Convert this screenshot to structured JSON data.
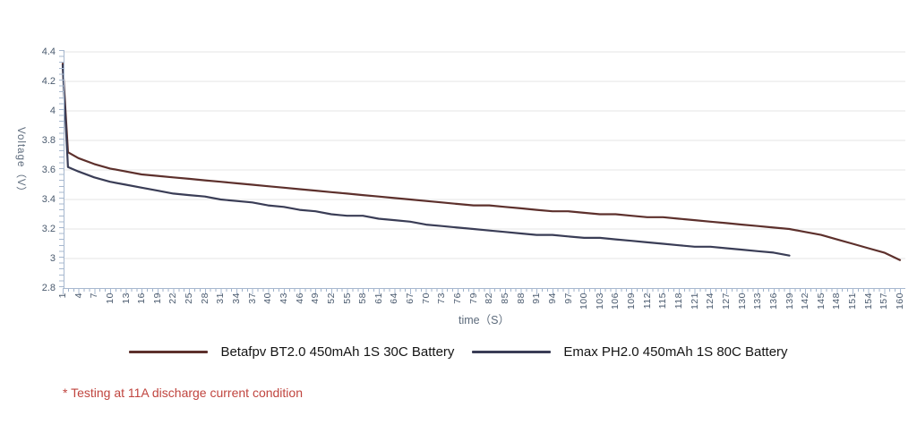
{
  "chart_data": {
    "type": "line",
    "title": "",
    "xlabel": "time（S）",
    "ylabel": "Voltage（V）",
    "xlim": [
      1,
      160
    ],
    "ylim": [
      2.8,
      4.4
    ],
    "grid": true,
    "legend_position": "bottom-center",
    "x_ticks": [
      1,
      4,
      7,
      10,
      13,
      16,
      19,
      22,
      25,
      28,
      31,
      34,
      37,
      40,
      43,
      46,
      49,
      52,
      55,
      58,
      61,
      64,
      67,
      70,
      73,
      76,
      79,
      82,
      85,
      88,
      91,
      94,
      97,
      100,
      103,
      106,
      109,
      112,
      115,
      118,
      121,
      124,
      127,
      130,
      133,
      136,
      139,
      142,
      145,
      148,
      151,
      154,
      157,
      160
    ],
    "y_ticks": [
      4.4,
      4.2,
      4,
      3.8,
      3.6,
      3.4,
      3.2,
      3,
      2.8
    ],
    "y_tick_labels": [
      "4.4",
      "4.2",
      "4",
      "3.8",
      "3.6",
      "3.4",
      "3.2",
      "3",
      "2.8"
    ],
    "axis_color": "#a7b8cf",
    "grid_color": "#e4e4e4",
    "series": [
      {
        "name": "Betafpv BT2.0 450mAh 1S 30C Battery",
        "color": "#5d302c",
        "points": [
          [
            1,
            4.32
          ],
          [
            2,
            3.72
          ],
          [
            4,
            3.68
          ],
          [
            7,
            3.64
          ],
          [
            10,
            3.61
          ],
          [
            13,
            3.59
          ],
          [
            16,
            3.57
          ],
          [
            19,
            3.56
          ],
          [
            22,
            3.55
          ],
          [
            25,
            3.54
          ],
          [
            28,
            3.53
          ],
          [
            31,
            3.52
          ],
          [
            34,
            3.51
          ],
          [
            37,
            3.5
          ],
          [
            40,
            3.49
          ],
          [
            43,
            3.48
          ],
          [
            46,
            3.47
          ],
          [
            49,
            3.46
          ],
          [
            52,
            3.45
          ],
          [
            55,
            3.44
          ],
          [
            58,
            3.43
          ],
          [
            61,
            3.42
          ],
          [
            64,
            3.41
          ],
          [
            67,
            3.4
          ],
          [
            70,
            3.39
          ],
          [
            73,
            3.38
          ],
          [
            76,
            3.37
          ],
          [
            79,
            3.36
          ],
          [
            82,
            3.36
          ],
          [
            85,
            3.35
          ],
          [
            88,
            3.34
          ],
          [
            91,
            3.33
          ],
          [
            94,
            3.32
          ],
          [
            97,
            3.32
          ],
          [
            100,
            3.31
          ],
          [
            103,
            3.3
          ],
          [
            106,
            3.3
          ],
          [
            109,
            3.29
          ],
          [
            112,
            3.28
          ],
          [
            115,
            3.28
          ],
          [
            118,
            3.27
          ],
          [
            121,
            3.26
          ],
          [
            124,
            3.25
          ],
          [
            127,
            3.24
          ],
          [
            130,
            3.23
          ],
          [
            133,
            3.22
          ],
          [
            136,
            3.21
          ],
          [
            139,
            3.2
          ],
          [
            142,
            3.18
          ],
          [
            145,
            3.16
          ],
          [
            148,
            3.13
          ],
          [
            151,
            3.1
          ],
          [
            154,
            3.07
          ],
          [
            157,
            3.04
          ],
          [
            160,
            2.99
          ]
        ]
      },
      {
        "name": "Emax PH2.0 450mAh 1S  80C Battery",
        "color": "#3a3d56",
        "points": [
          [
            1,
            4.31
          ],
          [
            2,
            3.62
          ],
          [
            4,
            3.59
          ],
          [
            7,
            3.55
          ],
          [
            10,
            3.52
          ],
          [
            13,
            3.5
          ],
          [
            16,
            3.48
          ],
          [
            19,
            3.46
          ],
          [
            22,
            3.44
          ],
          [
            25,
            3.43
          ],
          [
            28,
            3.42
          ],
          [
            31,
            3.4
          ],
          [
            34,
            3.39
          ],
          [
            37,
            3.38
          ],
          [
            40,
            3.36
          ],
          [
            43,
            3.35
          ],
          [
            46,
            3.33
          ],
          [
            49,
            3.32
          ],
          [
            52,
            3.3
          ],
          [
            55,
            3.29
          ],
          [
            58,
            3.29
          ],
          [
            61,
            3.27
          ],
          [
            64,
            3.26
          ],
          [
            67,
            3.25
          ],
          [
            70,
            3.23
          ],
          [
            73,
            3.22
          ],
          [
            76,
            3.21
          ],
          [
            79,
            3.2
          ],
          [
            82,
            3.19
          ],
          [
            85,
            3.18
          ],
          [
            88,
            3.17
          ],
          [
            91,
            3.16
          ],
          [
            94,
            3.16
          ],
          [
            97,
            3.15
          ],
          [
            100,
            3.14
          ],
          [
            103,
            3.14
          ],
          [
            106,
            3.13
          ],
          [
            109,
            3.12
          ],
          [
            112,
            3.11
          ],
          [
            115,
            3.1
          ],
          [
            118,
            3.09
          ],
          [
            121,
            3.08
          ],
          [
            124,
            3.08
          ],
          [
            127,
            3.07
          ],
          [
            130,
            3.06
          ],
          [
            133,
            3.05
          ],
          [
            136,
            3.04
          ],
          [
            139,
            3.02
          ]
        ]
      }
    ]
  },
  "footnote": {
    "text": "* Testing at 11A discharge current condition",
    "color": "#c0453f"
  }
}
